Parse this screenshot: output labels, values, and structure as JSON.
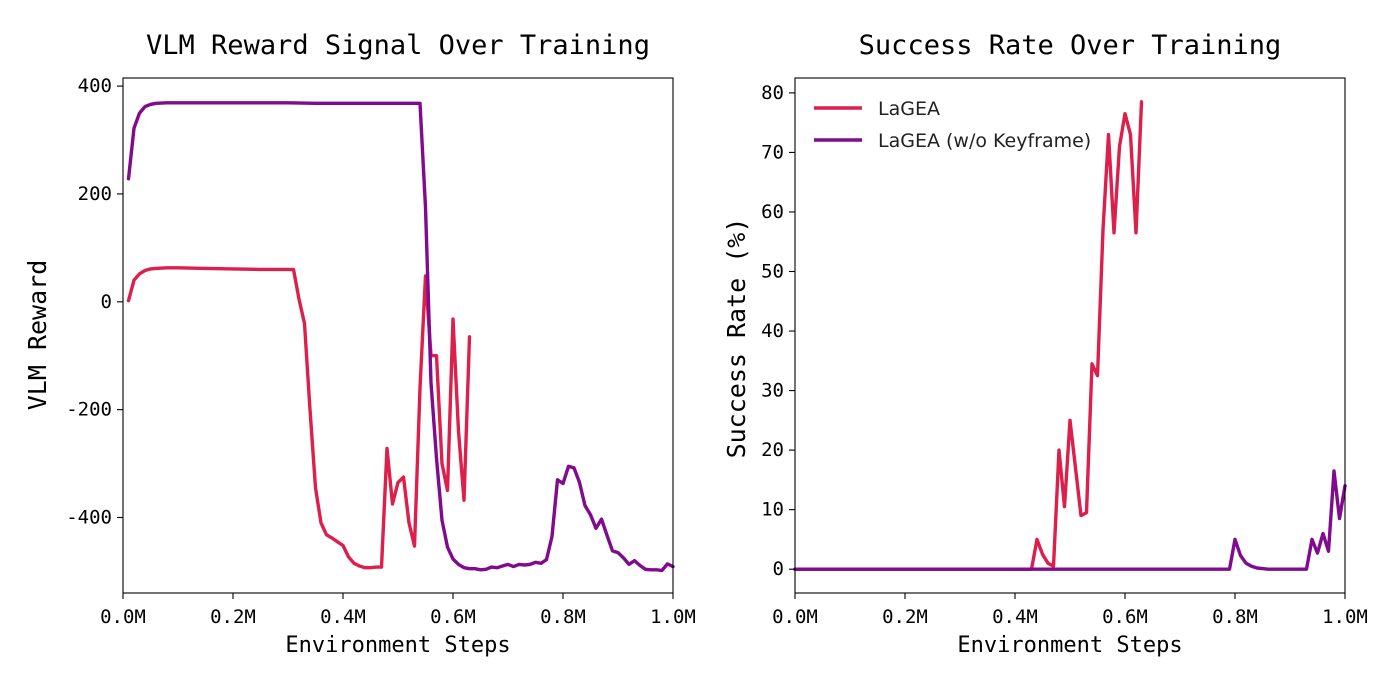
{
  "chart_data": [
    {
      "type": "line",
      "title": "VLM Reward Signal Over Training",
      "xlabel": "Environment Steps",
      "ylabel": "VLM Reward",
      "xlim": [
        0,
        1000000
      ],
      "ylim": [
        -540,
        415
      ],
      "xticks": [
        0,
        200000,
        400000,
        600000,
        800000,
        1000000
      ],
      "xtick_labels": [
        "0.0M",
        "0.2M",
        "0.4M",
        "0.6M",
        "0.8M",
        "1.0M"
      ],
      "yticks": [
        400,
        200,
        0,
        -200,
        -400
      ],
      "ytick_labels": [
        "400",
        "200",
        "0",
        "-200",
        "-400"
      ],
      "grid": false,
      "legend": false,
      "series": [
        {
          "name": "LaGEA",
          "color": "#dc1f4b",
          "x": [
            10000,
            20000,
            30000,
            40000,
            50000,
            60000,
            80000,
            100000,
            150000,
            200000,
            250000,
            300000,
            310000,
            320000,
            330000,
            340000,
            350000,
            360000,
            370000,
            380000,
            390000,
            400000,
            410000,
            420000,
            430000,
            440000,
            450000,
            460000,
            470000,
            480000,
            490000,
            500000,
            510000,
            520000,
            530000,
            540000,
            550000,
            560000,
            570000,
            580000,
            590000,
            600000,
            610000,
            620000,
            630000
          ],
          "y": [
            2,
            40,
            52,
            58,
            61,
            62,
            63,
            63,
            62,
            61,
            60,
            60,
            60,
            5,
            -40,
            -200,
            -345,
            -410,
            -432,
            -438,
            -445,
            -452,
            -473,
            -485,
            -490,
            -493,
            -493,
            -492,
            -492,
            -272,
            -375,
            -335,
            -325,
            -410,
            -453,
            -160,
            48,
            -100,
            -100,
            -300,
            -350,
            -32,
            -240,
            -368,
            -65
          ]
        },
        {
          "name": "LaGEA (w/o Keyframe)",
          "color": "#800b8e",
          "x": [
            10000,
            20000,
            30000,
            40000,
            50000,
            60000,
            80000,
            100000,
            150000,
            200000,
            250000,
            300000,
            350000,
            400000,
            450000,
            500000,
            540000,
            550000,
            560000,
            570000,
            580000,
            590000,
            600000,
            610000,
            620000,
            630000,
            640000,
            650000,
            660000,
            670000,
            680000,
            690000,
            700000,
            710000,
            720000,
            730000,
            740000,
            750000,
            760000,
            770000,
            780000,
            790000,
            800000,
            810000,
            820000,
            830000,
            840000,
            850000,
            860000,
            870000,
            880000,
            890000,
            900000,
            910000,
            920000,
            930000,
            940000,
            950000,
            960000,
            970000,
            980000,
            990000,
            1000000
          ],
          "y": [
            228,
            322,
            350,
            362,
            366,
            368,
            369,
            369,
            369,
            369,
            369,
            369,
            368,
            368,
            368,
            368,
            368,
            175,
            -150,
            -290,
            -405,
            -455,
            -477,
            -487,
            -493,
            -495,
            -495,
            -497,
            -496,
            -492,
            -493,
            -490,
            -487,
            -491,
            -487,
            -488,
            -487,
            -483,
            -485,
            -478,
            -435,
            -330,
            -337,
            -305,
            -308,
            -335,
            -378,
            -395,
            -420,
            -403,
            -433,
            -462,
            -465,
            -475,
            -487,
            -480,
            -489,
            -496,
            -497,
            -497,
            -498,
            -486,
            -491
          ]
        }
      ]
    },
    {
      "type": "line",
      "title": "Success Rate Over Training",
      "xlabel": "Environment Steps",
      "ylabel": "Success Rate (%)",
      "xlim": [
        0,
        1000000
      ],
      "ylim": [
        -4,
        82.5
      ],
      "xticks": [
        0,
        200000,
        400000,
        600000,
        800000,
        1000000
      ],
      "xtick_labels": [
        "0.0M",
        "0.2M",
        "0.4M",
        "0.6M",
        "0.8M",
        "1.0M"
      ],
      "yticks": [
        80,
        70,
        60,
        50,
        40,
        30,
        20,
        10,
        0
      ],
      "ytick_labels": [
        "80",
        "70",
        "60",
        "50",
        "40",
        "30",
        "20",
        "10",
        "0"
      ],
      "grid": false,
      "legend": "top-left",
      "series": [
        {
          "name": "LaGEA",
          "color": "#dc1f4b",
          "x": [
            0,
            430000,
            440000,
            450000,
            460000,
            470000,
            480000,
            490000,
            500000,
            510000,
            520000,
            530000,
            540000,
            550000,
            560000,
            570000,
            580000,
            590000,
            600000,
            610000,
            620000,
            630000
          ],
          "y": [
            0,
            0,
            5,
            2.5,
            1,
            0.5,
            20,
            10.5,
            25,
            17,
            9,
            9.5,
            34.5,
            32.5,
            57,
            73,
            56.5,
            71,
            76.5,
            73,
            56.5,
            78.5
          ]
        },
        {
          "name": "LaGEA (w/o Keyframe)",
          "color": "#800b8e",
          "x": [
            0,
            790000,
            800000,
            810000,
            820000,
            830000,
            840000,
            850000,
            860000,
            870000,
            880000,
            890000,
            900000,
            910000,
            920000,
            930000,
            940000,
            950000,
            960000,
            970000,
            980000,
            990000,
            1000000
          ],
          "y": [
            0,
            0,
            5,
            2.3,
            1,
            0.5,
            0.2,
            0.1,
            0,
            0,
            0,
            0,
            0,
            0,
            0,
            0,
            5,
            2.7,
            6,
            3,
            16.5,
            8.5,
            14
          ]
        }
      ]
    }
  ]
}
